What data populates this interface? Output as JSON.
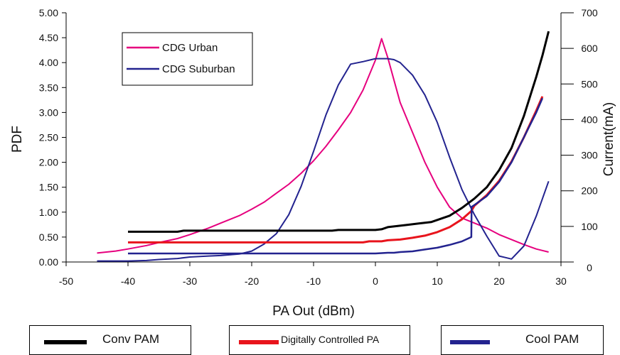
{
  "chart_data": {
    "type": "line",
    "xlabel": "PA Out (dBm)",
    "ylabel_left": "PDF",
    "ylabel_right": "Current(mA)",
    "xlim": [
      -50,
      30
    ],
    "ylim_left": [
      0,
      5
    ],
    "ylim_right": [
      0,
      700
    ],
    "x_ticks": [
      "-50",
      "-40",
      "-30",
      "-20",
      "-10",
      "0",
      "10",
      "20",
      "30"
    ],
    "y_left_ticks": [
      "0.00",
      "0.50",
      "1.00",
      "1.50",
      "2.00",
      "2.50",
      "3.00",
      "3.50",
      "4.00",
      "4.50",
      "5.00"
    ],
    "y_right_ticks": [
      "0",
      "100",
      "200",
      "300",
      "400",
      "500",
      "600",
      "700"
    ],
    "grid": false,
    "legend_inner": {
      "placement": "top-left",
      "entries": [
        {
          "label": "CDG Urban",
          "color": "#e6007e"
        },
        {
          "label": "CDG Suburban",
          "color": "#23238f"
        }
      ]
    },
    "legend_bottom": [
      {
        "label": "Conv PAM",
        "color": "#000000"
      },
      {
        "label": "Digitally Controlled PA",
        "color": "#e8141c"
      },
      {
        "label": "Cool PAM",
        "color": "#23238f"
      }
    ],
    "series": [
      {
        "name": "CDG Urban",
        "axis": "left",
        "color": "#e6007e",
        "x": [
          -45,
          -42,
          -40,
          -37,
          -35,
          -32,
          -30,
          -27,
          -25,
          -22,
          -20,
          -18,
          -16,
          -14,
          -12,
          -10,
          -8,
          -6,
          -4,
          -2,
          0,
          1,
          2,
          3,
          4,
          6,
          8,
          10,
          12,
          14,
          16,
          18,
          20,
          22,
          24,
          26,
          28
        ],
        "y": [
          0.18,
          0.22,
          0.26,
          0.33,
          0.39,
          0.47,
          0.55,
          0.68,
          0.78,
          0.93,
          1.06,
          1.2,
          1.38,
          1.56,
          1.78,
          2.03,
          2.32,
          2.65,
          3.0,
          3.45,
          4.05,
          4.48,
          4.1,
          3.65,
          3.2,
          2.6,
          2.0,
          1.5,
          1.1,
          0.88,
          0.78,
          0.68,
          0.55,
          0.45,
          0.35,
          0.26,
          0.2
        ]
      },
      {
        "name": "CDG Suburban",
        "axis": "left",
        "color": "#23238f",
        "x": [
          -45,
          -40,
          -37,
          -35,
          -32,
          -30,
          -27,
          -25,
          -22,
          -20,
          -18,
          -16,
          -14,
          -12,
          -10,
          -8,
          -6,
          -4,
          -2,
          0,
          1,
          2,
          3,
          4,
          6,
          8,
          10,
          12,
          14,
          16,
          18,
          20,
          21,
          22,
          24,
          26,
          28
        ],
        "y": [
          0.02,
          0.02,
          0.03,
          0.05,
          0.07,
          0.1,
          0.12,
          0.13,
          0.16,
          0.22,
          0.36,
          0.57,
          0.95,
          1.52,
          2.22,
          2.95,
          3.55,
          3.97,
          4.02,
          4.08,
          4.08,
          4.08,
          4.06,
          4.0,
          3.75,
          3.35,
          2.8,
          2.1,
          1.45,
          0.95,
          0.52,
          0.12,
          0.09,
          0.06,
          0.32,
          0.92,
          1.62
        ]
      },
      {
        "name": "Conv PAM",
        "axis": "right",
        "color": "#000000",
        "x": [
          -40,
          -35,
          -32,
          -31,
          -30,
          -20,
          -10,
          -7,
          -6,
          0,
          1,
          2,
          3,
          5,
          7,
          9,
          10,
          12,
          14,
          16,
          18,
          20,
          22,
          24,
          26,
          27,
          28
        ],
        "y": [
          85,
          85,
          85,
          88,
          88,
          88,
          88,
          88,
          90,
          90,
          92,
          98,
          100,
          104,
          108,
          112,
          118,
          130,
          152,
          178,
          210,
          258,
          320,
          410,
          520,
          580,
          648
        ]
      },
      {
        "name": "Digitally Controlled PA",
        "axis": "right",
        "color": "#e8141c",
        "x": [
          -40,
          -30,
          -20,
          -10,
          -2,
          -1,
          0,
          1,
          2,
          4,
          6,
          8,
          10,
          12,
          14,
          15.5,
          16,
          18,
          20,
          22,
          24,
          26,
          27
        ],
        "y": [
          55,
          55,
          55,
          55,
          55,
          58,
          58,
          58,
          61,
          63,
          68,
          74,
          84,
          98,
          120,
          143,
          158,
          188,
          228,
          282,
          350,
          425,
          465
        ]
      },
      {
        "name": "Cool PAM",
        "axis": "right",
        "color": "#23238f",
        "x": [
          -40,
          -30,
          -20,
          -10,
          0,
          1,
          2,
          3,
          4,
          6,
          8,
          10,
          12,
          13,
          14,
          15.5,
          15.55,
          16,
          18,
          20,
          22,
          24,
          26,
          27
        ],
        "y": [
          24,
          24,
          24,
          24,
          24,
          25,
          26,
          26,
          28,
          30,
          35,
          40,
          48,
          53,
          58,
          70,
          155,
          160,
          185,
          225,
          280,
          350,
          420,
          460
        ]
      }
    ]
  }
}
